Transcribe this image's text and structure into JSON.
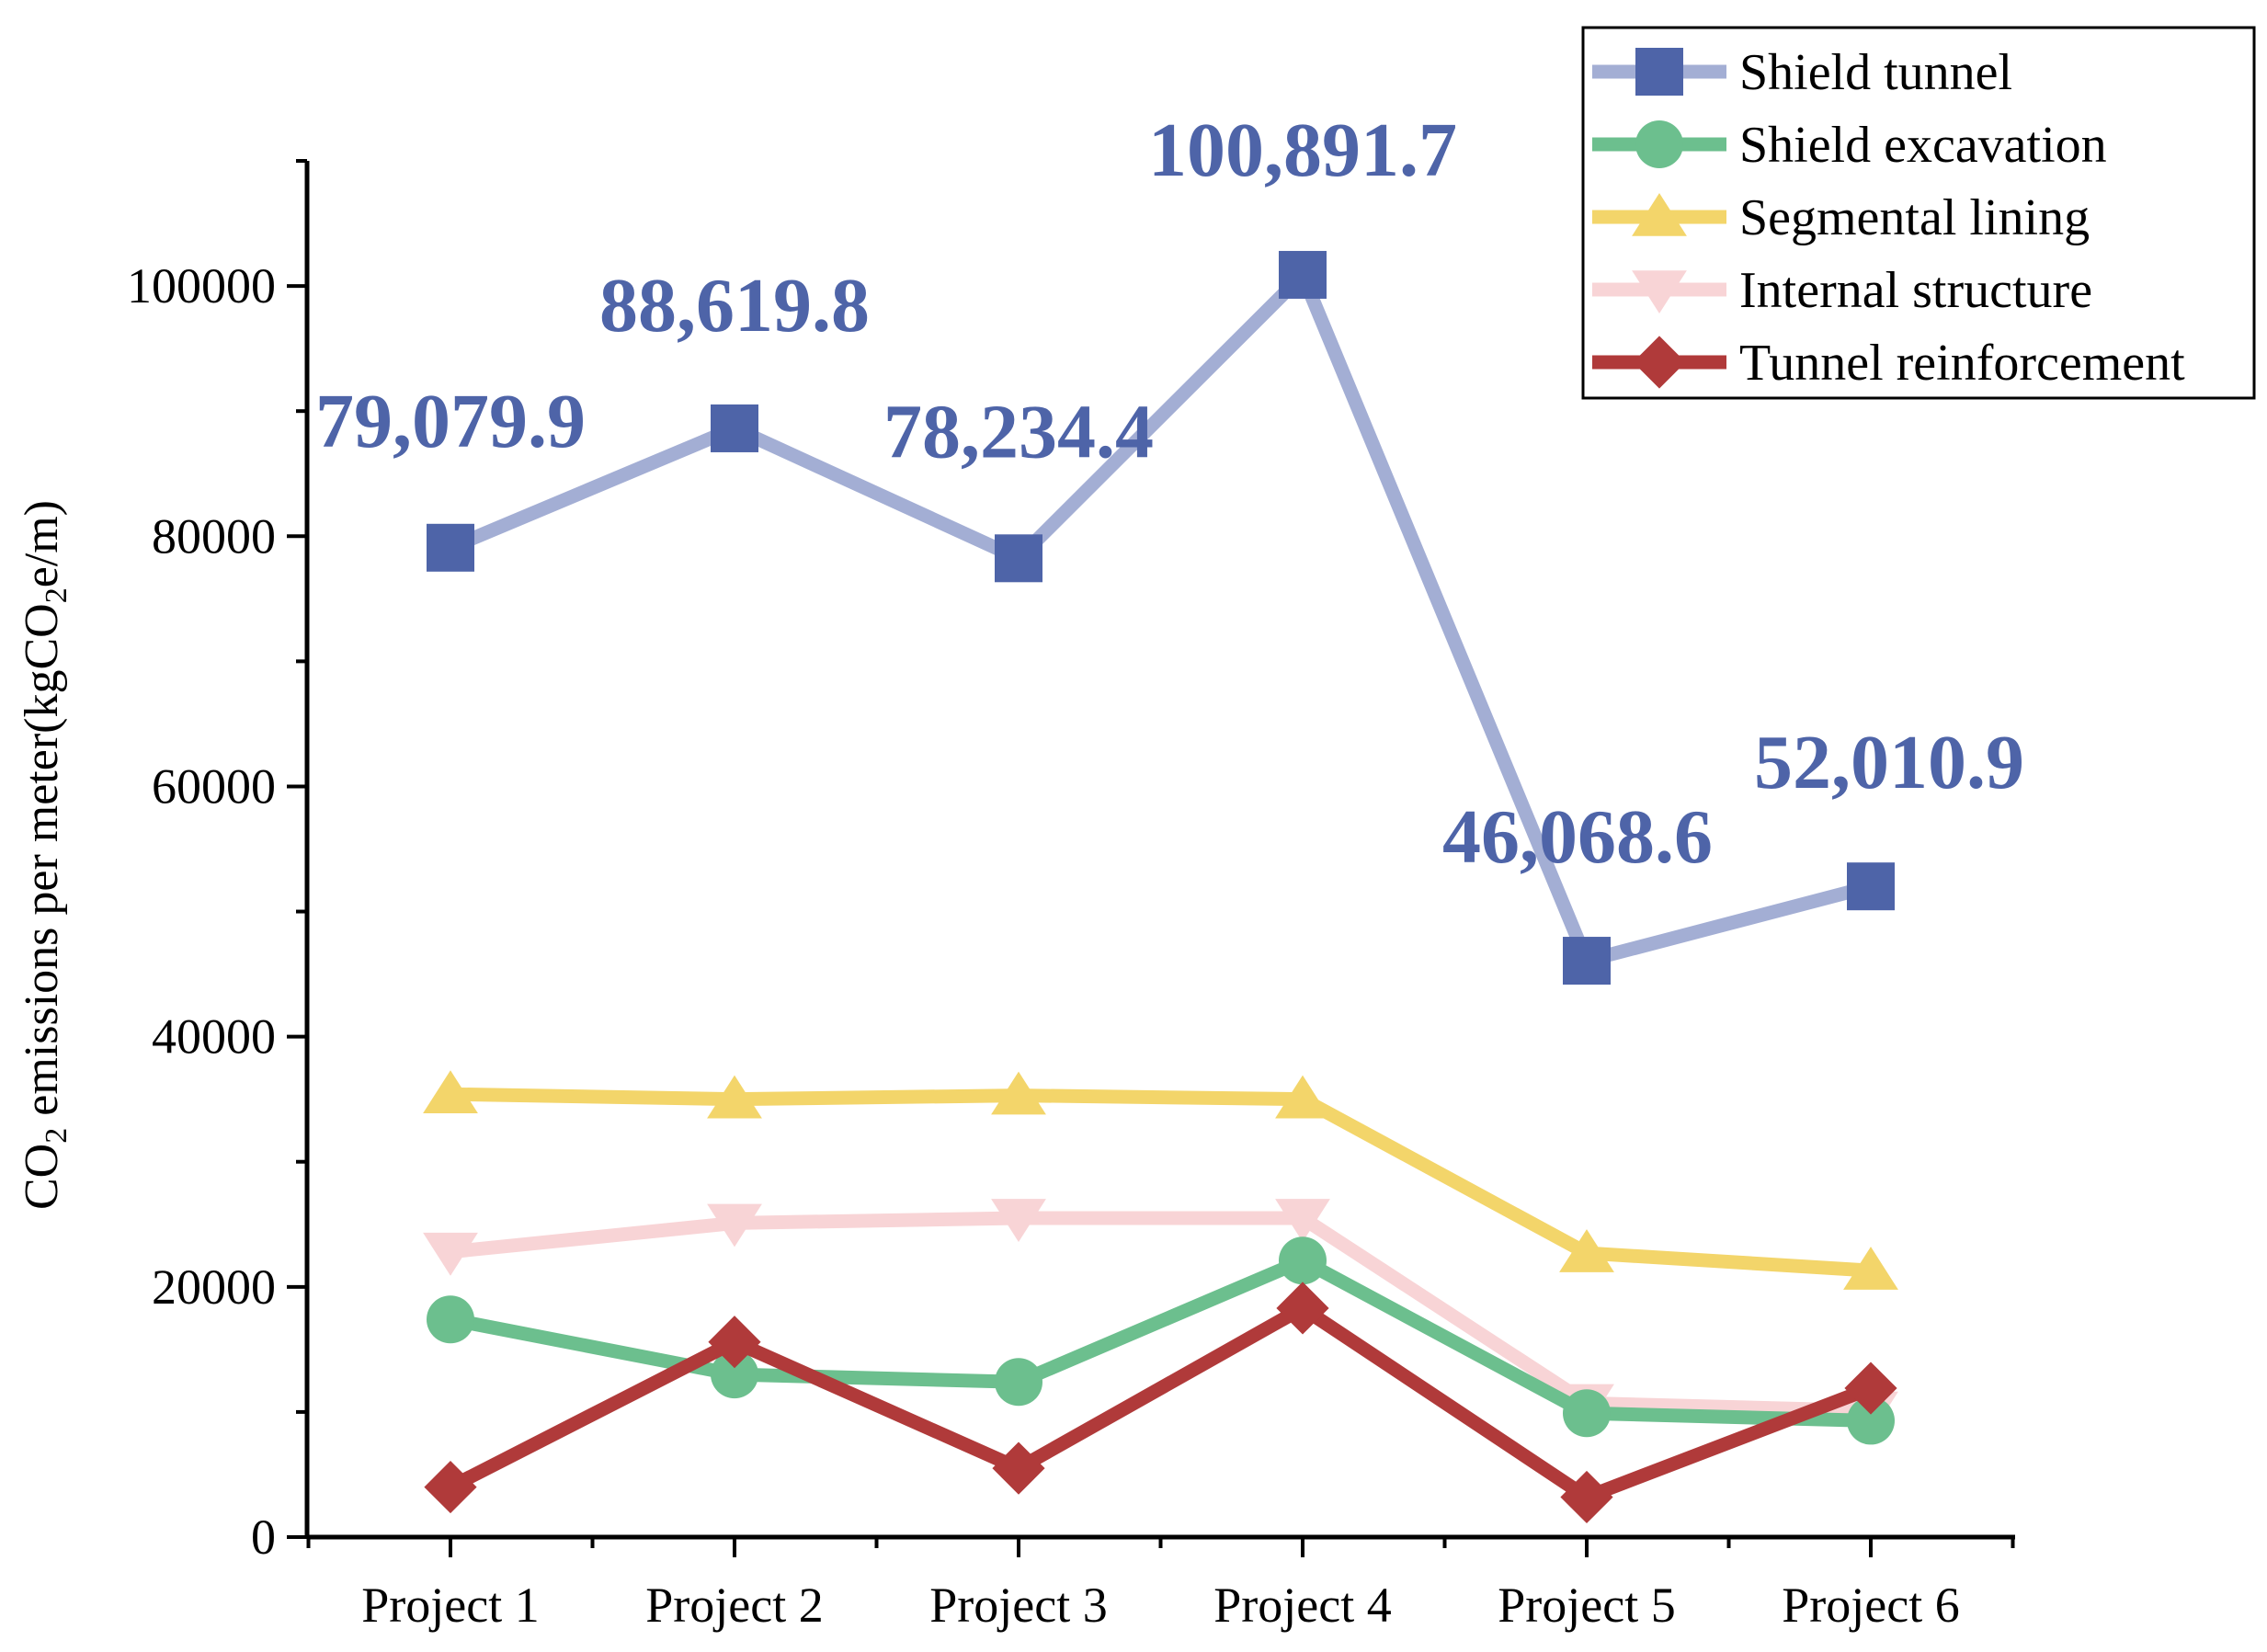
{
  "chart_data": {
    "type": "line",
    "title": "",
    "xlabel": "",
    "ylabel_main": "CO",
    "ylabel_sub": "2",
    "ylabel_rest": " emissions per meter(kgCO",
    "ylabel_sub2": "2",
    "ylabel_end": "e/m)",
    "ylim": [
      0,
      110000
    ],
    "yticks": [
      0,
      20000,
      40000,
      60000,
      80000,
      100000
    ],
    "ytick_labels": [
      "0",
      "20000",
      "40000",
      "60000",
      "80000",
      "100000"
    ],
    "categories": [
      "Project 1",
      "Project 2",
      "Project 3",
      "Project 4",
      "Project 5",
      "Project 6"
    ],
    "legend_position": "top-right",
    "series": [
      {
        "name": "Shield tunnel",
        "line_color": "#a3aed4",
        "marker_color": "#4e64a8",
        "marker": "square",
        "values": [
          79079.9,
          88619.8,
          78234.4,
          100891.7,
          46068.6,
          52010.9
        ],
        "labels": [
          "79,079.9",
          "88,619.8",
          "78,234.4",
          "100,891.7",
          "46,068.6",
          "52,010.9"
        ]
      },
      {
        "name": "Shield excavation",
        "line_color": "#6cbf8e",
        "marker_color": "#6cbf8e",
        "marker": "circle",
        "values": [
          17400,
          13000,
          12400,
          22100,
          9900,
          9300
        ]
      },
      {
        "name": "Segmental lining",
        "line_color": "#f3d56a",
        "marker_color": "#f3d56a",
        "marker": "triangle-up",
        "values": [
          35400,
          35000,
          35300,
          35000,
          22700,
          21300
        ]
      },
      {
        "name": "Internal structure",
        "line_color": "#f8d4d6",
        "marker_color": "#f8d4d6",
        "marker": "triangle-down",
        "values": [
          22800,
          25100,
          25500,
          25500,
          10700,
          10100
        ]
      },
      {
        "name": "Tunnel reinforcement",
        "line_color": "#b03a3a",
        "marker_color": "#b03a3a",
        "marker": "diamond",
        "values": [
          4000,
          15600,
          5500,
          18300,
          3200,
          11900
        ]
      }
    ]
  },
  "colors": {
    "label_color": "#4e64a8",
    "axis": "#000000"
  }
}
